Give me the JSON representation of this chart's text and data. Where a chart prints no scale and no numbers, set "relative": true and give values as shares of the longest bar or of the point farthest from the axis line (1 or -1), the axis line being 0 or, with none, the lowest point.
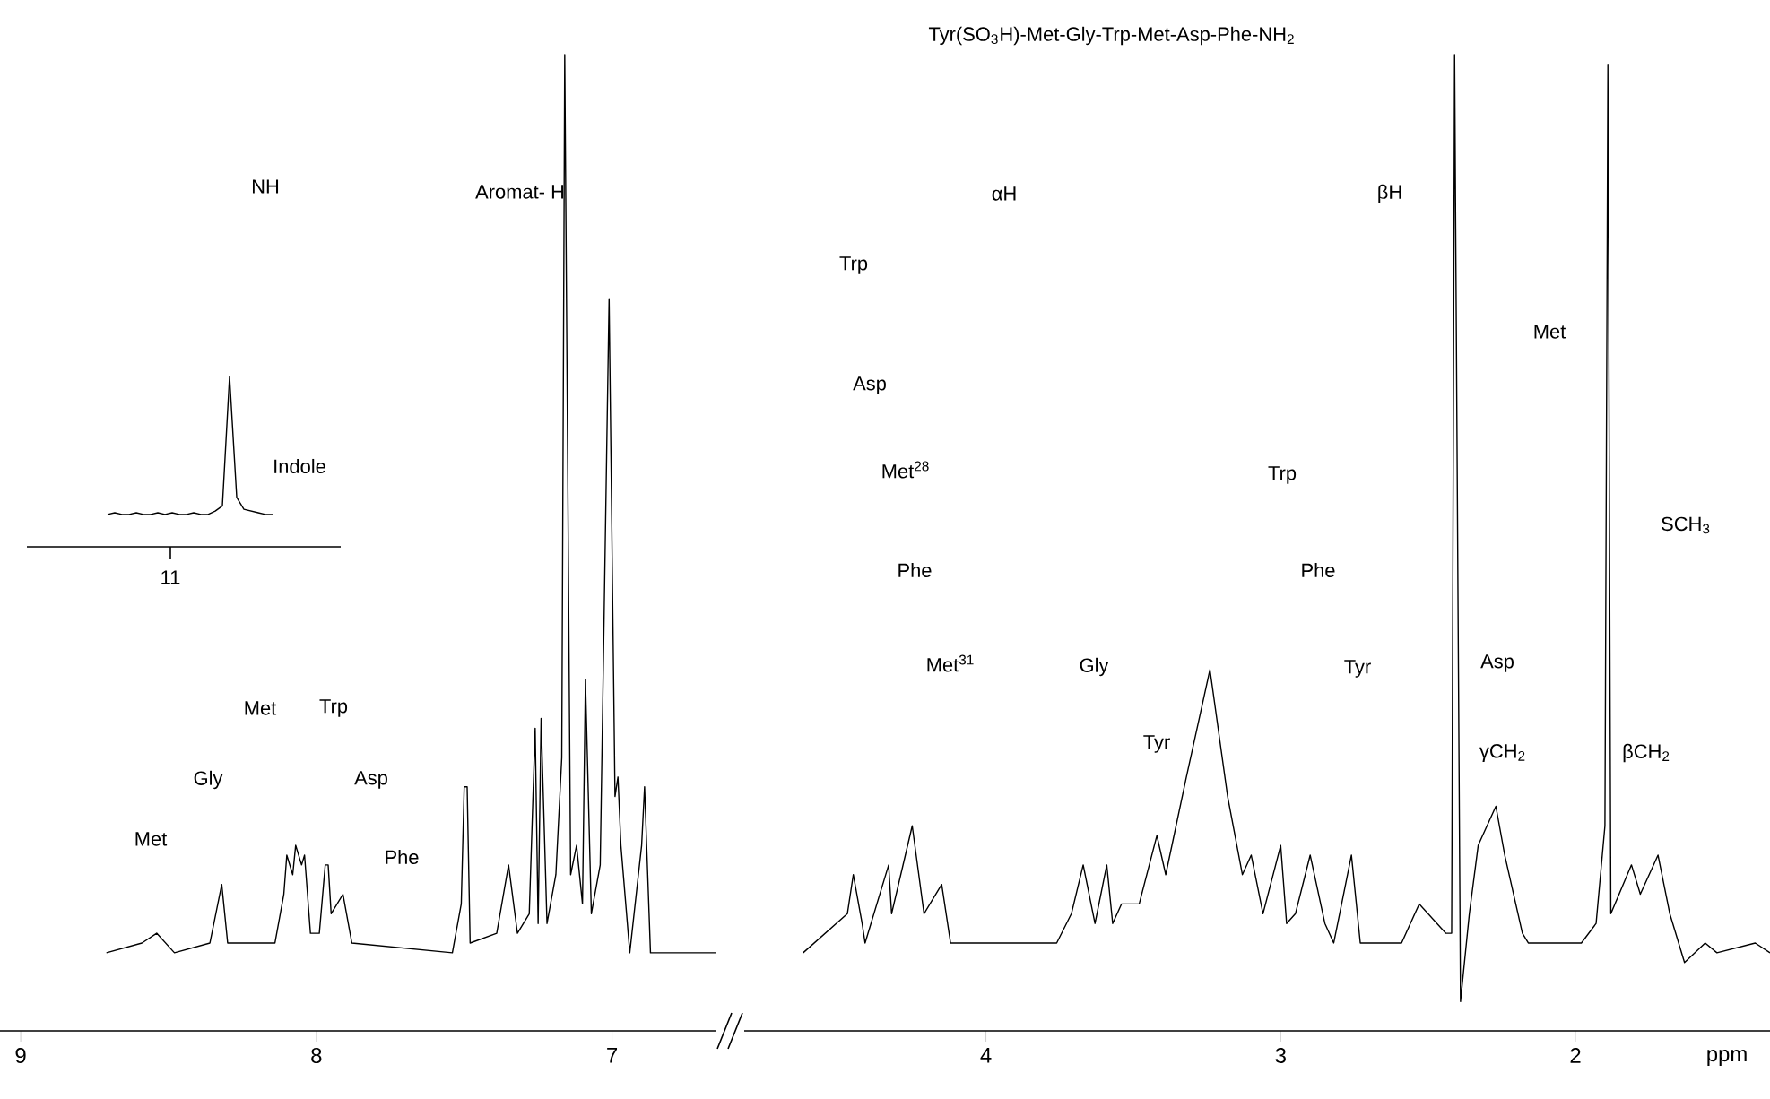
{
  "chart_data": [
    {
      "type": "line",
      "relative": true,
      "color": "#000000",
      "xlim": [
        9.07,
        6.65
      ],
      "xticks": [
        9,
        8,
        7
      ],
      "x": [
        8.71,
        8.59,
        8.54,
        8.48,
        8.36,
        8.32,
        8.3,
        8.14,
        8.11,
        8.1,
        8.08,
        8.07,
        8.05,
        8.04,
        8.02,
        7.99,
        7.97,
        7.96,
        7.95,
        7.91,
        7.88,
        7.54,
        7.51,
        7.5,
        7.49,
        7.48,
        7.39,
        7.35,
        7.32,
        7.28,
        7.26,
        7.25,
        7.24,
        7.22,
        7.19,
        7.17,
        7.16,
        7.14,
        7.12,
        7.1,
        7.09,
        7.07,
        7.04,
        7.01,
        6.99,
        6.98,
        6.97,
        6.94,
        6.9,
        6.89,
        6.87,
        6.65
      ],
      "values": [
        0.08,
        0.09,
        0.1,
        0.08,
        0.09,
        0.15,
        0.09,
        0.09,
        0.14,
        0.18,
        0.16,
        0.19,
        0.17,
        0.18,
        0.1,
        0.1,
        0.17,
        0.17,
        0.12,
        0.14,
        0.09,
        0.08,
        0.13,
        0.25,
        0.25,
        0.09,
        0.1,
        0.17,
        0.1,
        0.12,
        0.31,
        0.11,
        0.32,
        0.11,
        0.16,
        0.28,
        1.0,
        0.16,
        0.19,
        0.13,
        0.36,
        0.12,
        0.17,
        0.75,
        0.24,
        0.26,
        0.19,
        0.08,
        0.19,
        0.25,
        0.08,
        0.08
      ],
      "annotations": [
        "NH",
        "Aromat- H",
        "Met",
        "Gly",
        "Met",
        "Trp",
        "Asp",
        "Phe"
      ]
    },
    {
      "type": "line",
      "relative": true,
      "color": "#000000",
      "title": "Tyr(SO$_{3}$H)-Met-Gly-Trp-Met-Asp-Phe-NH$_{2}$",
      "xlabel": "ppm",
      "xlim": [
        4.82,
        1.34
      ],
      "xticks": [
        4,
        3,
        2
      ],
      "x": [
        4.62,
        4.47,
        4.45,
        4.42,
        4.41,
        4.33,
        4.32,
        4.25,
        4.21,
        4.15,
        4.12,
        3.98,
        3.92,
        3.76,
        3.71,
        3.67,
        3.63,
        3.59,
        3.57,
        3.54,
        3.48,
        3.42,
        3.39,
        3.32,
        3.24,
        3.18,
        3.13,
        3.1,
        3.06,
        3.0,
        2.98,
        2.95,
        2.9,
        2.85,
        2.82,
        2.78,
        2.76,
        2.73,
        2.59,
        2.53,
        2.44,
        2.42,
        2.41,
        2.39,
        2.36,
        2.33,
        2.27,
        2.24,
        2.18,
        2.16,
        1.98,
        1.93,
        1.9,
        1.89,
        1.88,
        1.81,
        1.78,
        1.72,
        1.68,
        1.63,
        1.56,
        1.52,
        1.39,
        1.34
      ],
      "values": [
        0.08,
        0.12,
        0.16,
        0.11,
        0.09,
        0.17,
        0.12,
        0.21,
        0.12,
        0.15,
        0.09,
        0.09,
        0.09,
        0.09,
        0.12,
        0.17,
        0.11,
        0.17,
        0.11,
        0.13,
        0.13,
        0.2,
        0.16,
        0.26,
        0.37,
        0.24,
        0.16,
        0.18,
        0.12,
        0.19,
        0.11,
        0.12,
        0.18,
        0.11,
        0.09,
        0.15,
        0.18,
        0.09,
        0.09,
        0.13,
        0.1,
        0.1,
        1.0,
        0.03,
        0.12,
        0.19,
        0.23,
        0.18,
        0.1,
        0.09,
        0.09,
        0.11,
        0.21,
        0.99,
        0.12,
        0.17,
        0.14,
        0.18,
        0.12,
        0.07,
        0.09,
        0.08,
        0.09,
        0.08
      ],
      "annotations": [
        "αH",
        "βH",
        "Trp",
        "Asp",
        "Met$^{28}$",
        "Phe",
        "Met$^{31}$",
        "Gly",
        "Tyr",
        "Trp",
        "Phe",
        "Tyr",
        "Asp",
        "γCH$_{2}$",
        "Met",
        "βCH$_{2}$",
        "SCH$_{3}$"
      ]
    },
    {
      "type": "line",
      "relative": true,
      "color": "#000000",
      "categories": [
        null,
        null,
        null,
        null,
        null,
        null,
        null,
        null,
        null,
        null,
        null,
        null,
        null,
        null,
        null,
        null,
        null,
        null,
        null,
        null,
        null,
        null,
        null,
        null
      ],
      "values": [
        0.19,
        0.2,
        0.19,
        0.19,
        0.2,
        0.19,
        0.19,
        0.2,
        0.19,
        0.2,
        0.19,
        0.19,
        0.2,
        0.19,
        0.19,
        0.21,
        0.24,
        1,
        0.29,
        0.22,
        0.21,
        0.2,
        0.19,
        0.19
      ],
      "annotations": [
        "Indole",
        "11"
      ]
    }
  ]
}
